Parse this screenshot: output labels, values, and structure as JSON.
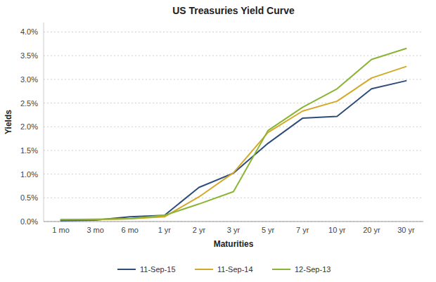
{
  "chart_data": {
    "type": "line",
    "title": "US Treasuries Yield Curve",
    "x_label": "Maturities",
    "y_label": "Yields",
    "categories": [
      "1 mo",
      "3 mo",
      "6 mo",
      "1 yr",
      "2 yr",
      "3 yr",
      "5 yr",
      "7 yr",
      "10 yr",
      "20 yr",
      "30 yr"
    ],
    "series": [
      {
        "name": "11-Sep-15",
        "color": "#2e4d7b",
        "values": [
          0.0002,
          0.0003,
          0.001,
          0.0013,
          0.0072,
          0.0102,
          0.0165,
          0.0218,
          0.0222,
          0.028,
          0.0297
        ]
      },
      {
        "name": "11-Sep-14",
        "color": "#d4a829",
        "values": [
          0.0004,
          0.0004,
          0.0006,
          0.001,
          0.0052,
          0.0103,
          0.0188,
          0.0233,
          0.0254,
          0.0303,
          0.0327
        ]
      },
      {
        "name": "12-Sep-13",
        "color": "#8ab534",
        "values": [
          0.0004,
          0.0005,
          0.0006,
          0.0013,
          0.0037,
          0.0063,
          0.0192,
          0.0241,
          0.028,
          0.0342,
          0.0365
        ]
      }
    ],
    "ylim": [
      0.0,
      0.042
    ],
    "yticks": [
      {
        "value": 0.0,
        "label": "0.0%"
      },
      {
        "value": 0.005,
        "label": "0.5%"
      },
      {
        "value": 0.01,
        "label": "1.0%"
      },
      {
        "value": 0.015,
        "label": "1.5%"
      },
      {
        "value": 0.02,
        "label": "2.0%"
      },
      {
        "value": 0.025,
        "label": "2.5%"
      },
      {
        "value": 0.03,
        "label": "3.0%"
      },
      {
        "value": 0.035,
        "label": "3.5%"
      },
      {
        "value": 0.04,
        "label": "4.0%"
      }
    ],
    "grid": true,
    "legend": "bottom"
  }
}
